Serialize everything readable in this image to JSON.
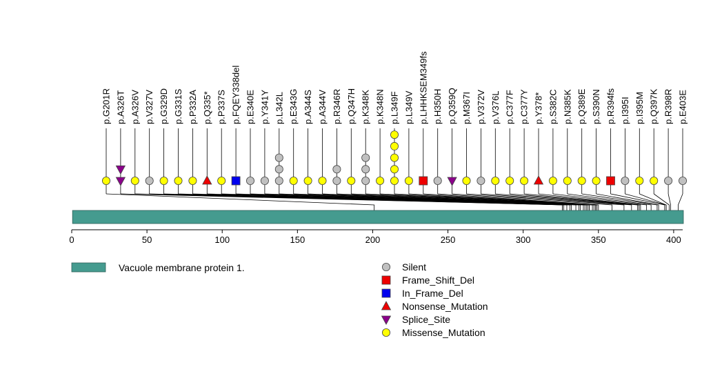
{
  "chart_data": {
    "type": "lollipop",
    "protein_length": 406,
    "axis": {
      "xlim": [
        0,
        406
      ],
      "ticks": [
        0,
        50,
        100,
        150,
        200,
        250,
        300,
        350,
        400
      ]
    },
    "domains": [
      {
        "name": "Vacuole membrane protein 1.",
        "start": 1,
        "end": 406,
        "color": "#459b8f"
      }
    ],
    "mutation_types": [
      {
        "name": "Silent",
        "shape": "circle",
        "color": "#c0c0c0"
      },
      {
        "name": "Frame_Shift_Del",
        "shape": "square",
        "color": "#ee0000"
      },
      {
        "name": "In_Frame_Del",
        "shape": "square",
        "color": "#0000ee"
      },
      {
        "name": "Nonsense_Mutation",
        "shape": "triangle-up",
        "color": "#ee0000"
      },
      {
        "name": "Splice_Site",
        "shape": "triangle-down",
        "color": "#8b008b"
      },
      {
        "name": "Missense_Mutation",
        "shape": "circle",
        "color": "#ffff00"
      }
    ],
    "mutations": [
      {
        "label": "p.G201R",
        "position": 201,
        "markers": [
          "Missense_Mutation"
        ]
      },
      {
        "label": "p.A326T",
        "position": 326,
        "markers": [
          "Splice_Site",
          "Splice_Site"
        ]
      },
      {
        "label": "p.A326V",
        "position": 326,
        "markers": [
          "Missense_Mutation"
        ]
      },
      {
        "label": "p.V327V",
        "position": 327,
        "markers": [
          "Silent"
        ]
      },
      {
        "label": "p.G329D",
        "position": 329,
        "markers": [
          "Missense_Mutation"
        ]
      },
      {
        "label": "p.G331S",
        "position": 331,
        "markers": [
          "Missense_Mutation"
        ]
      },
      {
        "label": "p.P332A",
        "position": 332,
        "markers": [
          "Missense_Mutation"
        ]
      },
      {
        "label": "p.Q335*",
        "position": 335,
        "markers": [
          "Nonsense_Mutation"
        ]
      },
      {
        "label": "p.P337S",
        "position": 337,
        "markers": [
          "Missense_Mutation"
        ]
      },
      {
        "label": "p.FQEY338del",
        "position": 338,
        "markers": [
          "In_Frame_Del"
        ]
      },
      {
        "label": "p.E340E",
        "position": 340,
        "markers": [
          "Silent"
        ]
      },
      {
        "label": "p.Y341Y",
        "position": 341,
        "markers": [
          "Silent"
        ]
      },
      {
        "label": "p.L342L",
        "position": 342,
        "markers": [
          "Silent",
          "Silent",
          "Silent"
        ]
      },
      {
        "label": "p.E343G",
        "position": 343,
        "markers": [
          "Missense_Mutation"
        ]
      },
      {
        "label": "p.A344S",
        "position": 344,
        "markers": [
          "Missense_Mutation"
        ]
      },
      {
        "label": "p.A344V",
        "position": 344,
        "markers": [
          "Missense_Mutation"
        ]
      },
      {
        "label": "p.R346R",
        "position": 346,
        "markers": [
          "Silent",
          "Silent"
        ]
      },
      {
        "label": "p.Q347H",
        "position": 347,
        "markers": [
          "Missense_Mutation"
        ]
      },
      {
        "label": "p.K348K",
        "position": 348,
        "markers": [
          "Silent",
          "Silent",
          "Silent"
        ]
      },
      {
        "label": "p.K348N",
        "position": 348,
        "markers": [
          "Missense_Mutation"
        ]
      },
      {
        "label": "p.L349F",
        "position": 349,
        "markers": [
          "Missense_Mutation",
          "Missense_Mutation",
          "Missense_Mutation",
          "Missense_Mutation",
          "Missense_Mutation"
        ]
      },
      {
        "label": "p.L349V",
        "position": 349,
        "markers": [
          "Missense_Mutation"
        ]
      },
      {
        "label": "p.LHHKSEM349fs",
        "position": 349,
        "markers": [
          "Frame_Shift_Del"
        ]
      },
      {
        "label": "p.H350H",
        "position": 350,
        "markers": [
          "Silent"
        ]
      },
      {
        "label": "p.Q359Q",
        "position": 359,
        "markers": [
          "Splice_Site"
        ]
      },
      {
        "label": "p.M367I",
        "position": 367,
        "markers": [
          "Missense_Mutation"
        ]
      },
      {
        "label": "p.V372V",
        "position": 372,
        "markers": [
          "Silent"
        ]
      },
      {
        "label": "p.V376L",
        "position": 376,
        "markers": [
          "Missense_Mutation"
        ]
      },
      {
        "label": "p.C377F",
        "position": 377,
        "markers": [
          "Missense_Mutation"
        ]
      },
      {
        "label": "p.C377Y",
        "position": 377,
        "markers": [
          "Missense_Mutation"
        ]
      },
      {
        "label": "p.Y378*",
        "position": 378,
        "markers": [
          "Nonsense_Mutation"
        ]
      },
      {
        "label": "p.S382C",
        "position": 382,
        "markers": [
          "Missense_Mutation"
        ]
      },
      {
        "label": "p.N385K",
        "position": 385,
        "markers": [
          "Missense_Mutation"
        ]
      },
      {
        "label": "p.Q389E",
        "position": 389,
        "markers": [
          "Missense_Mutation"
        ]
      },
      {
        "label": "p.S390N",
        "position": 390,
        "markers": [
          "Missense_Mutation"
        ]
      },
      {
        "label": "p.R394fs",
        "position": 394,
        "markers": [
          "Frame_Shift_Del"
        ]
      },
      {
        "label": "p.I395I",
        "position": 395,
        "markers": [
          "Silent"
        ]
      },
      {
        "label": "p.I395M",
        "position": 395,
        "markers": [
          "Missense_Mutation"
        ]
      },
      {
        "label": "p.Q397K",
        "position": 397,
        "markers": [
          "Missense_Mutation"
        ]
      },
      {
        "label": "p.R398R",
        "position": 398,
        "markers": [
          "Silent"
        ]
      },
      {
        "label": "p.E403E",
        "position": 403,
        "markers": [
          "Silent"
        ]
      }
    ]
  }
}
